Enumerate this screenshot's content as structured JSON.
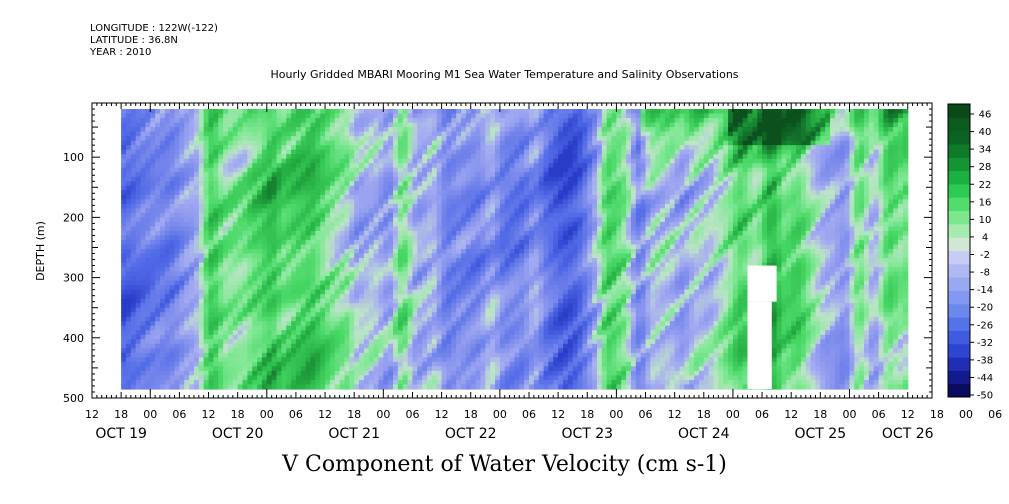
{
  "meta": {
    "longitude": "LONGITUDE : 122W(-122)",
    "latitude": "LATITUDE : 36.8N",
    "year": "YEAR : 2010"
  },
  "chart_data": {
    "type": "heatmap",
    "title": "Hourly Gridded MBARI Mooring M1 Sea Water Temperature and Salinity Observations",
    "colorbar_title": "V Component of Water Velocity (cm s-1)",
    "ylabel": "DEPTH (m)",
    "y_axis": {
      "ylim": [
        500,
        10
      ],
      "inverted": true,
      "ticks": [
        100,
        200,
        300,
        400,
        500
      ]
    },
    "x_axis": {
      "range_hours": [
        -12,
        161
      ],
      "hour_ticks": [
        "12",
        "18",
        "00",
        "06",
        "12",
        "18",
        "00",
        "06",
        "12",
        "18",
        "00",
        "06",
        "12",
        "18",
        "00",
        "06",
        "12",
        "18",
        "00",
        "06",
        "12",
        "18",
        "00",
        "06",
        "12",
        "18",
        "00",
        "06",
        "12",
        "18",
        "00",
        "06"
      ],
      "day_labels": [
        "OCT 19",
        "OCT 20",
        "OCT 21",
        "OCT 22",
        "OCT 23",
        "OCT 24",
        "OCT 25",
        "OCT 26"
      ]
    },
    "data_extent": {
      "x_hours": [
        -6,
        156
      ],
      "depth_m": [
        20,
        485
      ]
    },
    "colorbar": {
      "levels": [
        "-50",
        "-44",
        "-38",
        "-32",
        "-26",
        "-20",
        "-14",
        "-8",
        "-2",
        "4",
        "10",
        "16",
        "22",
        "28",
        "34",
        "40",
        "46"
      ],
      "colors": [
        "#0a0a5e",
        "#141a8c",
        "#1f2eb4",
        "#2e45d2",
        "#3f5be0",
        "#5573e8",
        "#6b88ec",
        "#8398f0",
        "#9aa8f2",
        "#b0b8f4",
        "#c6ccf6",
        "#cfe8d4",
        "#a6ecb0",
        "#7ee68c",
        "#52dc6c",
        "#2ecb52",
        "#1bb041",
        "#139534",
        "#0e7a2a",
        "#0a6322",
        "#0b5a1f",
        "#0a4a1a"
      ]
    },
    "gaps": [
      {
        "x_hours": [
          123,
          129
        ],
        "depth_m": [
          280,
          340
        ]
      },
      {
        "x_hours": [
          123,
          128
        ],
        "depth_m": [
          340,
          485
        ]
      }
    ],
    "field_summary": "Alternating bands of northward (green) and southward (blue/violet) velocity; strongest northward flow (40 to 46) near surface on Oct 25."
  }
}
